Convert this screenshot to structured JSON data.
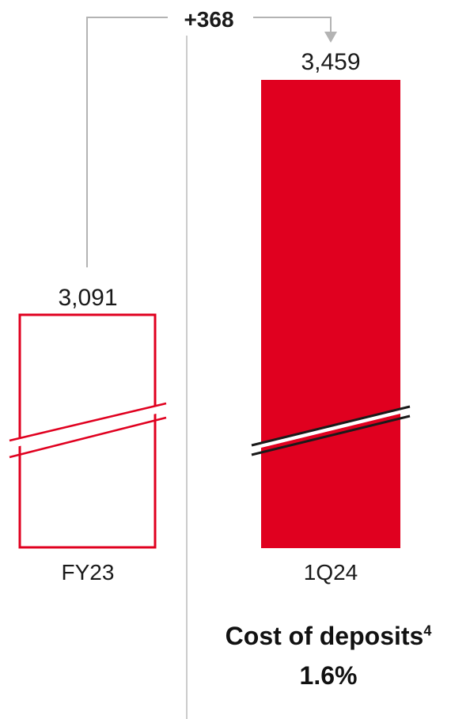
{
  "chart_data": {
    "type": "bar",
    "categories": [
      "FY23",
      "1Q24"
    ],
    "values": [
      3091,
      3459
    ],
    "value_labels": [
      "3,091",
      "3,459"
    ],
    "axis_break": true,
    "delta_label": "+368",
    "colors": {
      "accent": "#e0001f",
      "text": "#1a1a1a",
      "connector": "#b3b3b3",
      "divider": "#cccccc"
    }
  },
  "note": {
    "title": "Cost of deposits",
    "footnote": "4",
    "value": "1.6%"
  }
}
